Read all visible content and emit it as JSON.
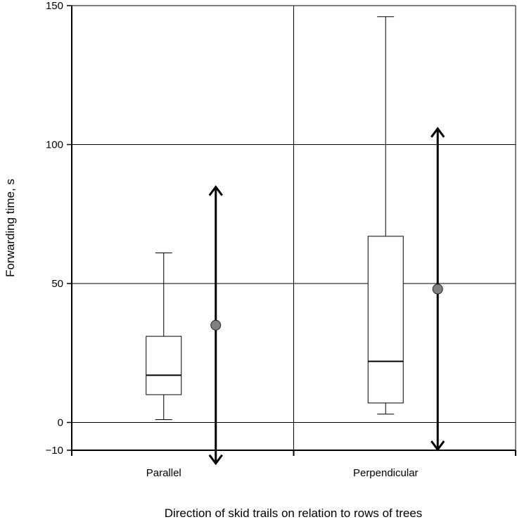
{
  "chart_data": {
    "type": "box",
    "xlabel": "Direction of skid trails on relation to rows of trees",
    "ylabel": "Forwarding time, s",
    "ylim": [
      -10,
      150
    ],
    "yticks": [
      -10,
      0,
      50,
      100,
      150
    ],
    "grid": true,
    "categories": [
      "Parallel",
      "Perpendicular"
    ],
    "boxes": [
      {
        "category": "Parallel",
        "min": 1,
        "q1": 10,
        "median": 17,
        "q3": 31,
        "max": 61
      },
      {
        "category": "Perpendicular",
        "min": 3,
        "q1": 7,
        "median": 22,
        "q3": 67,
        "max": 146
      }
    ],
    "mean_range": [
      {
        "category": "Parallel",
        "mean": 35,
        "lower": -15,
        "upper": 85
      },
      {
        "category": "Perpendicular",
        "mean": 48,
        "lower": -10,
        "upper": 106
      }
    ]
  }
}
